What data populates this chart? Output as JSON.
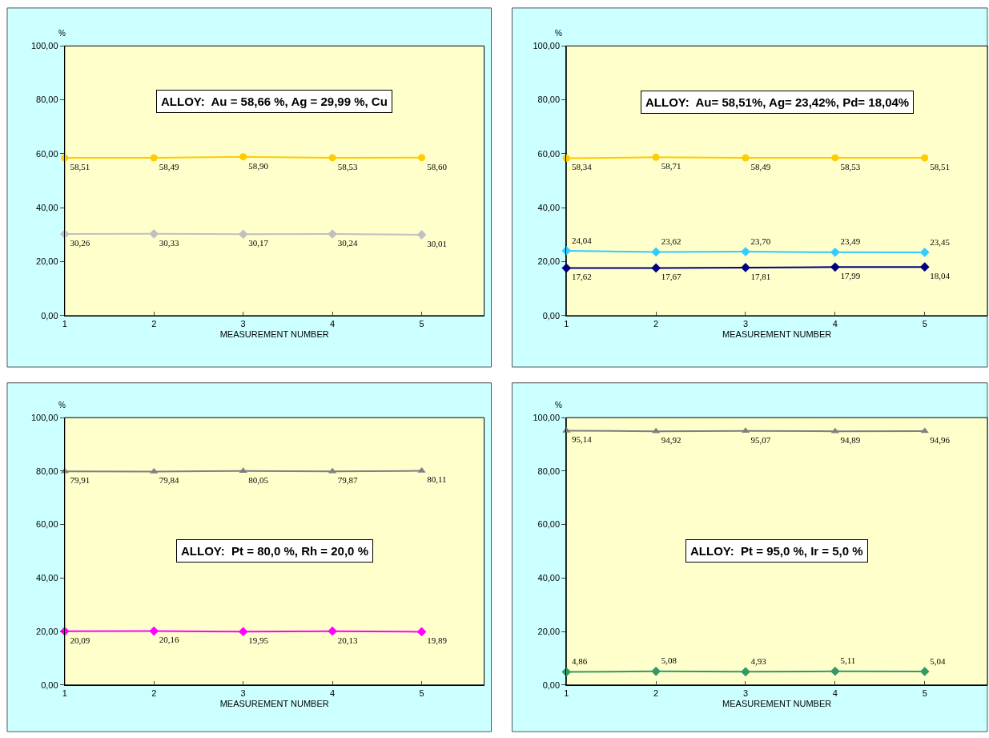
{
  "chart_data": [
    {
      "type": "line",
      "xlabel": "MEASUREMENT NUMBER",
      "ylabel": "%",
      "annotations": [
        "ALLOY:  Au = 58,66 %, Ag = 29,99 %, Cu"
      ],
      "x": [
        1,
        2,
        3,
        4,
        5
      ],
      "xlim": [
        1,
        5.7
      ],
      "xticks": [
        1,
        2,
        3,
        4,
        5
      ],
      "ylim": [
        0,
        100
      ],
      "yticks": [
        {
          "value": 0,
          "label": "0,00"
        },
        {
          "value": 20,
          "label": "20,00"
        },
        {
          "value": 40,
          "label": "40,00"
        },
        {
          "value": 60,
          "label": "60,00"
        },
        {
          "value": 80,
          "label": "80,00"
        },
        {
          "value": 100,
          "label": "100,00"
        }
      ],
      "grid": false,
      "series": [
        {
          "color": "#ffcc00",
          "marker": "circle",
          "values": [
            58.51,
            58.49,
            58.9,
            58.53,
            58.6
          ],
          "value_labels": [
            "58,51",
            "58,49",
            "58,90",
            "58,53",
            "58,60"
          ]
        },
        {
          "color": "#c0c0c0",
          "marker": "diamond",
          "values": [
            30.26,
            30.33,
            30.17,
            30.24,
            30.01
          ],
          "value_labels": [
            "30,26",
            "30,33",
            "30,17",
            "30,24",
            "30,01"
          ]
        }
      ]
    },
    {
      "type": "line",
      "xlabel": "MEASUREMENT NUMBER",
      "ylabel": "%",
      "annotations": [
        "ALLOY:  Au= 58,51%, Ag= 23,42%, Pd= 18,04%"
      ],
      "x": [
        1,
        2,
        3,
        4,
        5
      ],
      "xlim": [
        1,
        5.7
      ],
      "xticks": [
        1,
        2,
        3,
        4,
        5
      ],
      "ylim": [
        0,
        100
      ],
      "yticks": [
        {
          "value": 0,
          "label": "0,00"
        },
        {
          "value": 20,
          "label": "20,00"
        },
        {
          "value": 40,
          "label": "40,00"
        },
        {
          "value": 60,
          "label": "60,00"
        },
        {
          "value": 80,
          "label": "80,00"
        },
        {
          "value": 100,
          "label": "100,00"
        }
      ],
      "grid": false,
      "series": [
        {
          "color": "#ffcc00",
          "marker": "circle",
          "values": [
            58.34,
            58.71,
            58.49,
            58.53,
            58.51
          ],
          "value_labels": [
            "58,34",
            "58,71",
            "58,49",
            "58,53",
            "58,51"
          ]
        },
        {
          "color": "#33ccff",
          "marker": "diamond",
          "values": [
            24.04,
            23.62,
            23.7,
            23.49,
            23.45
          ],
          "value_labels": [
            "24,04",
            "23,62",
            "23,70",
            "23,49",
            "23,45"
          ]
        },
        {
          "color": "#000080",
          "marker": "diamond",
          "values": [
            17.62,
            17.67,
            17.81,
            17.99,
            18.04
          ],
          "value_labels": [
            "17,62",
            "17,67",
            "17,81",
            "17,99",
            "18,04"
          ]
        }
      ]
    },
    {
      "type": "line",
      "xlabel": "MEASUREMENT NUMBER",
      "ylabel": "%",
      "annotations": [
        "ALLOY:  Pt = 80,0 %, Rh = 20,0 %"
      ],
      "x": [
        1,
        2,
        3,
        4,
        5
      ],
      "xlim": [
        1,
        5.7
      ],
      "xticks": [
        1,
        2,
        3,
        4,
        5
      ],
      "ylim": [
        0,
        100
      ],
      "yticks": [
        {
          "value": 0,
          "label": "0,00"
        },
        {
          "value": 20,
          "label": "20,00"
        },
        {
          "value": 40,
          "label": "40,00"
        },
        {
          "value": 60,
          "label": "60,00"
        },
        {
          "value": 80,
          "label": "80,00"
        },
        {
          "value": 100,
          "label": "100,00"
        }
      ],
      "grid": false,
      "series": [
        {
          "color": "#808080",
          "marker": "triangle",
          "values": [
            79.91,
            79.84,
            80.05,
            79.87,
            80.11
          ],
          "value_labels": [
            "79,91",
            "79,84",
            "80,05",
            "79,87",
            "80,11"
          ]
        },
        {
          "color": "#ff00ff",
          "marker": "diamond",
          "values": [
            20.09,
            20.16,
            19.95,
            20.13,
            19.89
          ],
          "value_labels": [
            "20,09",
            "20,16",
            "19,95",
            "20,13",
            "19,89"
          ]
        }
      ]
    },
    {
      "type": "line",
      "xlabel": "MEASUREMENT NUMBER",
      "ylabel": "%",
      "annotations": [
        "ALLOY:  Pt = 95,0 %, Ir = 5,0 %"
      ],
      "x": [
        1,
        2,
        3,
        4,
        5
      ],
      "xlim": [
        1,
        5.7
      ],
      "xticks": [
        1,
        2,
        3,
        4,
        5
      ],
      "ylim": [
        0,
        100
      ],
      "yticks": [
        {
          "value": 0,
          "label": "0,00"
        },
        {
          "value": 20,
          "label": "20,00"
        },
        {
          "value": 40,
          "label": "40,00"
        },
        {
          "value": 60,
          "label": "60,00"
        },
        {
          "value": 80,
          "label": "80,00"
        },
        {
          "value": 100,
          "label": "100,00"
        }
      ],
      "grid": false,
      "series": [
        {
          "color": "#808080",
          "marker": "triangle",
          "values": [
            95.14,
            94.92,
            95.07,
            94.89,
            94.96
          ],
          "value_labels": [
            "95,14",
            "94,92",
            "95,07",
            "94,89",
            "94,96"
          ]
        },
        {
          "color": "#339966",
          "marker": "diamond",
          "values": [
            4.86,
            5.08,
            4.93,
            5.11,
            5.04
          ],
          "value_labels": [
            "4,86",
            "5,08",
            "4,93",
            "5,11",
            "5,04"
          ]
        }
      ]
    }
  ]
}
